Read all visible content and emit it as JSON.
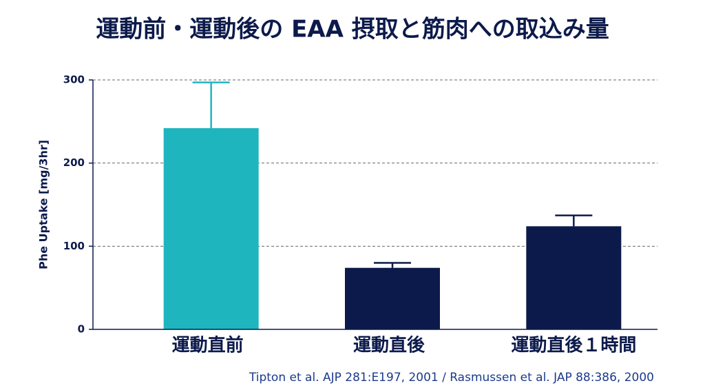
{
  "chart_data": {
    "type": "bar",
    "title": "運動前・運動後の EAA 摂取と筋肉への取込み量",
    "ylabel": "Phe Uptake [mg/3hr]",
    "source": "Tipton et al. AJP 281:E197, 2001 / Rasmussen et al. JAP 88:386, 2000",
    "categories": [
      "運動直前",
      "運動直後",
      "運動直後１時間"
    ],
    "values": [
      242,
      74,
      124
    ],
    "errors": [
      55,
      6,
      13
    ],
    "colors": [
      "#1fb5bf",
      "#0c1a4b",
      "#0c1a4b"
    ],
    "ylim": [
      0,
      300
    ],
    "yticks": [
      0,
      100,
      200,
      300
    ],
    "grid": true
  }
}
